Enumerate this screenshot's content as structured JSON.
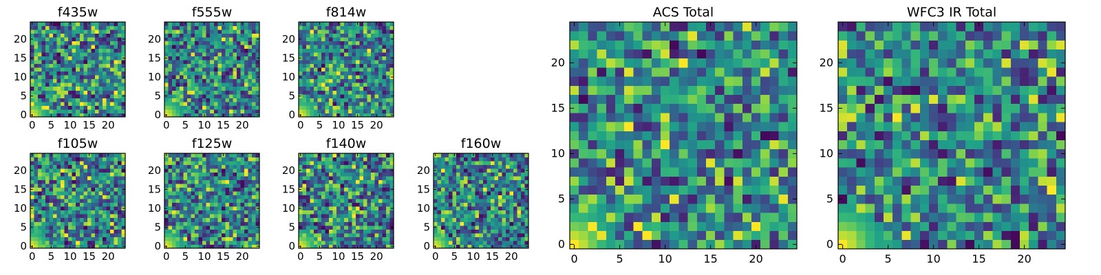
{
  "chart_data": [
    {
      "type": "heatmap",
      "title": "f435w",
      "seed": 11,
      "ncells": 25,
      "xticks": [
        "0",
        "5",
        "10",
        "15",
        "20"
      ],
      "yticks": [
        "0",
        "5",
        "10",
        "15",
        "20"
      ],
      "colormap": "viridis",
      "corner": "bottom-left"
    },
    {
      "type": "heatmap",
      "title": "f555w",
      "seed": 23,
      "ncells": 25,
      "xticks": [
        "0",
        "5",
        "10",
        "15",
        "20"
      ],
      "yticks": [
        "0",
        "5",
        "10",
        "15",
        "20"
      ],
      "colormap": "viridis",
      "corner": "bottom-left"
    },
    {
      "type": "heatmap",
      "title": "f814w",
      "seed": 37,
      "ncells": 25,
      "xticks": [
        "0",
        "5",
        "10",
        "15",
        "20"
      ],
      "yticks": [
        "0",
        "5",
        "10",
        "15",
        "20"
      ],
      "colormap": "viridis",
      "corner": "bottom-left"
    },
    {
      "type": "heatmap",
      "title": "f105w",
      "seed": 41,
      "ncells": 25,
      "xticks": [
        "0",
        "5",
        "10",
        "15",
        "20"
      ],
      "yticks": [
        "0",
        "5",
        "10",
        "15",
        "20"
      ],
      "colormap": "viridis",
      "corner": "bottom-left"
    },
    {
      "type": "heatmap",
      "title": "f125w",
      "seed": 53,
      "ncells": 25,
      "xticks": [
        "0",
        "5",
        "10",
        "15",
        "20"
      ],
      "yticks": [
        "0",
        "5",
        "10",
        "15",
        "20"
      ],
      "colormap": "viridis",
      "corner": "bottom-left"
    },
    {
      "type": "heatmap",
      "title": "f140w",
      "seed": 67,
      "ncells": 25,
      "xticks": [
        "0",
        "5",
        "10",
        "15",
        "20"
      ],
      "yticks": [
        "0",
        "5",
        "10",
        "15",
        "20"
      ],
      "colormap": "viridis",
      "corner": "bottom-left"
    },
    {
      "type": "heatmap",
      "title": "f160w",
      "seed": 79,
      "ncells": 25,
      "xticks": [
        "0",
        "5",
        "10",
        "15",
        "20"
      ],
      "yticks": [
        "0",
        "5",
        "10",
        "15",
        "20"
      ],
      "colormap": "viridis",
      "corner": "bottom-left"
    },
    {
      "type": "heatmap",
      "title": "ACS Total",
      "seed": 97,
      "ncells": 25,
      "xticks": [
        "0",
        "5",
        "10",
        "15",
        "20"
      ],
      "yticks": [
        "0",
        "5",
        "10",
        "15",
        "20"
      ],
      "colormap": "viridis",
      "corner": "bottom-left"
    },
    {
      "type": "heatmap",
      "title": "WFC3 IR Total",
      "seed": 131,
      "ncells": 25,
      "xticks": [
        "0",
        "5",
        "10",
        "15",
        "20"
      ],
      "yticks": [
        "0",
        "5",
        "10",
        "15",
        "20"
      ],
      "colormap": "viridis",
      "corner": "bottom-left"
    }
  ]
}
